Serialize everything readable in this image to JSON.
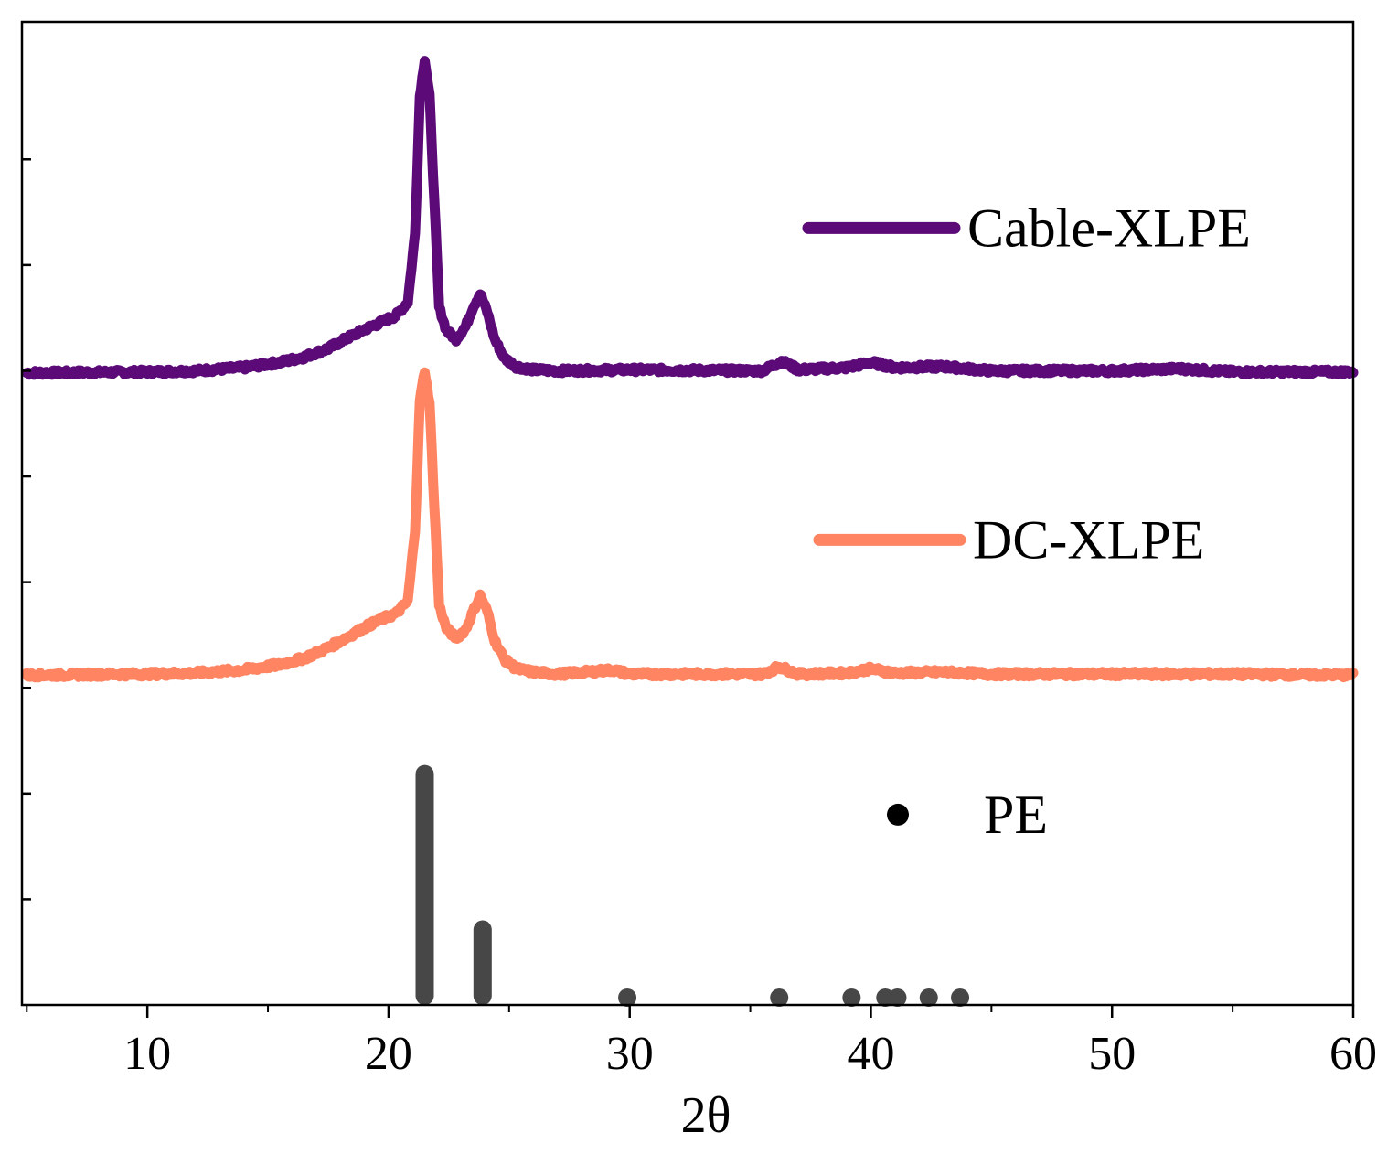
{
  "chart_data": {
    "type": "line",
    "title": "",
    "xlabel": "2θ",
    "ylabel": "",
    "xlim": [
      4.8,
      60.0
    ],
    "ylim": [
      0,
      9.3
    ],
    "grid": false,
    "xticks": [
      {
        "value": 10,
        "label": "10"
      },
      {
        "value": 20,
        "label": "20"
      },
      {
        "value": 30,
        "label": "30"
      },
      {
        "value": 40,
        "label": "40"
      },
      {
        "value": 50,
        "label": "50"
      },
      {
        "value": 60,
        "label": "60"
      }
    ],
    "yticks": [
      1,
      2,
      3,
      4,
      5,
      6,
      7,
      8
    ],
    "legend_position": "right",
    "series": [
      {
        "name": "Cable-XLPE",
        "kind": "line",
        "color": "#5b0a78",
        "x": [
          5.0,
          10.0,
          12.0,
          14.0,
          15.5,
          16.5,
          17.5,
          18.3,
          19.0,
          19.7,
          20.3,
          20.8,
          21.1,
          21.3,
          21.5,
          21.7,
          21.9,
          22.1,
          22.4,
          22.8,
          23.2,
          23.5,
          23.8,
          24.1,
          24.4,
          24.8,
          25.3,
          26.0,
          27.0,
          30.0,
          35.5,
          36.3,
          37.0,
          39.0,
          40.0,
          41.0,
          43.0,
          45.0,
          50.0,
          52.8,
          55.0,
          60.0
        ],
        "y": [
          5.98,
          5.99,
          6.0,
          6.03,
          6.08,
          6.13,
          6.21,
          6.31,
          6.39,
          6.46,
          6.52,
          6.65,
          7.3,
          8.6,
          8.95,
          8.6,
          7.6,
          6.6,
          6.38,
          6.3,
          6.42,
          6.6,
          6.73,
          6.55,
          6.3,
          6.12,
          6.04,
          6.01,
          6.0,
          6.01,
          6.0,
          6.09,
          6.01,
          6.03,
          6.08,
          6.03,
          6.04,
          6.0,
          6.0,
          6.02,
          5.99,
          5.99
        ]
      },
      {
        "name": "DC-XLPE",
        "kind": "line",
        "color": "#ff8462",
        "x": [
          5.0,
          10.0,
          12.0,
          14.0,
          15.5,
          16.5,
          17.5,
          18.3,
          19.0,
          19.7,
          20.3,
          20.8,
          21.1,
          21.3,
          21.5,
          21.7,
          21.9,
          22.1,
          22.4,
          22.8,
          23.2,
          23.5,
          23.8,
          24.1,
          24.4,
          24.8,
          25.3,
          26.0,
          27.0,
          29.3,
          30.0,
          35.5,
          36.2,
          37.0,
          39.0,
          40.0,
          41.0,
          43.0,
          45.0,
          50.0,
          55.0,
          60.0
        ],
        "y": [
          3.12,
          3.13,
          3.14,
          3.17,
          3.22,
          3.28,
          3.38,
          3.48,
          3.57,
          3.65,
          3.7,
          3.82,
          4.5,
          5.72,
          6.0,
          5.7,
          4.72,
          3.78,
          3.56,
          3.47,
          3.55,
          3.72,
          3.87,
          3.72,
          3.45,
          3.27,
          3.18,
          3.15,
          3.13,
          3.17,
          3.13,
          3.13,
          3.2,
          3.13,
          3.14,
          3.18,
          3.14,
          3.15,
          3.13,
          3.13,
          3.13,
          3.12
        ]
      },
      {
        "name": "PE",
        "kind": "stick",
        "color": "#474747",
        "x": [
          21.5,
          23.9,
          29.9,
          36.2,
          39.2,
          40.6,
          41.1,
          42.4,
          43.7
        ],
        "y": [
          2.27,
          0.8,
          0.06,
          0.1,
          0.08,
          0.08,
          0.06,
          0.08,
          0.04
        ]
      }
    ],
    "legend": [
      {
        "label": "Cable-XLPE",
        "symbol": "line",
        "color": "#5b0a78",
        "y": 7.35
      },
      {
        "label": "DC-XLPE",
        "symbol": "line",
        "color": "#ff8462",
        "y": 4.4
      },
      {
        "label": "PE",
        "symbol": "dot",
        "color": "#000000",
        "y": 1.8
      }
    ]
  }
}
